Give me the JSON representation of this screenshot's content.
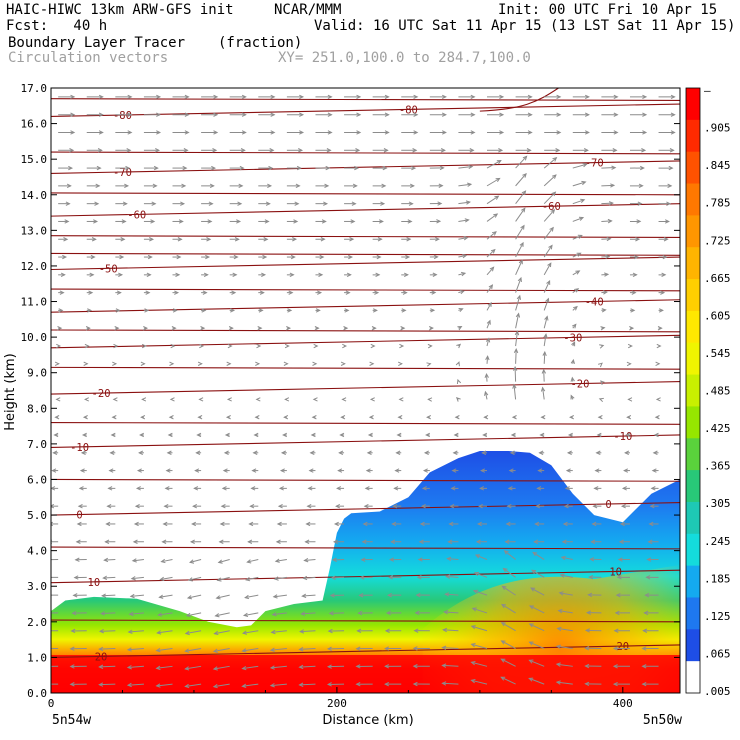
{
  "header": {
    "model": "HAIC-HIWC 13km ARW-GFS init",
    "org": "NCAR/MMM",
    "init": "Init: 00 UTC Fri 10 Apr 15",
    "fcst": "Fcst:   40 h",
    "valid": "Valid: 16 UTC Sat 11 Apr 15 (13 LST Sat 11 Apr 15)",
    "field": "Boundary Layer Tracer",
    "units": "(fraction)",
    "vectors": "Circulation vectors",
    "xy": "XY= 251.0,100.0 to 284.7,100.0"
  },
  "colors": {
    "contour": "#8a1010",
    "vector": "#8c8c8c"
  },
  "chart_data": {
    "type": "heatmap",
    "xlabel": "Distance (km)",
    "ylabel": "Height (km)",
    "xlim": [
      0,
      440
    ],
    "ylim": [
      0.0,
      17.0
    ],
    "x_ticks": [
      "0",
      "200",
      "400"
    ],
    "y_ticks": [
      "0.0",
      "1.0",
      "2.0",
      "3.0",
      "4.0",
      "5.0",
      "6.0",
      "7.0",
      "8.0",
      "9.0",
      "10.0",
      "11.0",
      "12.0",
      "13.0",
      "14.0",
      "15.0",
      "16.0",
      "17.0"
    ],
    "x_endpoints": [
      "5n54w",
      "5n50w"
    ],
    "colorbar": {
      "labels": [
        "–",
        ".905",
        ".845",
        ".785",
        ".725",
        ".665",
        ".605",
        ".545",
        ".485",
        ".425",
        ".365",
        ".305",
        ".245",
        ".185",
        ".125",
        ".065",
        ".005"
      ],
      "colors": [
        "#ff0000",
        "#ff2a00",
        "#ff5200",
        "#ff7800",
        "#ff9600",
        "#ffb400",
        "#ffcf00",
        "#ffe800",
        "#f0f500",
        "#c8f000",
        "#96e600",
        "#5ad23c",
        "#28c878",
        "#1ec8b4",
        "#14dcdc",
        "#14aaf0",
        "#1e78f0",
        "#1e4ee6",
        "#ffffff"
      ]
    },
    "tracer_top": {
      "x": [
        0,
        10,
        30,
        60,
        90,
        110,
        130,
        140,
        150,
        170,
        190,
        195,
        200,
        205,
        210,
        230,
        250,
        265,
        285,
        300,
        320,
        335,
        350,
        365,
        380,
        400,
        420,
        440
      ],
      "height": [
        2.3,
        2.6,
        2.7,
        2.65,
        2.3,
        2.0,
        1.85,
        1.9,
        2.3,
        2.5,
        2.6,
        3.5,
        4.5,
        4.9,
        5.05,
        5.1,
        5.5,
        6.2,
        6.6,
        6.8,
        6.8,
        6.75,
        6.4,
        5.6,
        5.0,
        4.8,
        5.6,
        6.0
      ]
    },
    "isotherms": [
      {
        "label": "-80",
        "label_x": [
          50,
          250
        ]
      },
      {
        "label": "-70",
        "label_x": [
          50,
          380
        ]
      },
      {
        "label": "-60",
        "label_x": [
          60,
          350
        ]
      },
      {
        "label": "-50",
        "label_x": [
          40
        ]
      },
      {
        "label": "-40",
        "label_x": [
          380
        ]
      },
      {
        "label": "-30",
        "label_x": [
          365
        ]
      },
      {
        "label": "-20",
        "label_x": [
          35,
          370
        ]
      },
      {
        "label": "-10",
        "label_x": [
          20,
          400
        ]
      },
      {
        "label": "0",
        "label_x": [
          20,
          390
        ]
      },
      {
        "label": "10",
        "label_x": [
          30,
          395
        ]
      },
      {
        "label": "20",
        "label_x": [
          35,
          400
        ]
      }
    ]
  }
}
